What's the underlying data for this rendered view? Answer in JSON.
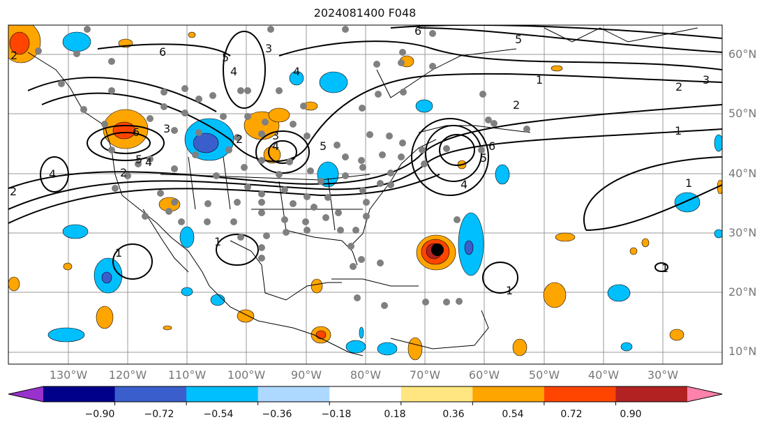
{
  "title": "2024081400 F048",
  "map": {
    "latitude_labels": [
      "60°N",
      "50°N",
      "40°N",
      "30°N",
      "20°N",
      "10°N"
    ],
    "longitude_labels": [
      "130°W",
      "120°W",
      "110°W",
      "100°W",
      "90°W",
      "80°W",
      "70°W",
      "60°W",
      "50°W",
      "40°W",
      "30°W"
    ],
    "contour_labels": [
      "6",
      "5",
      "4",
      "3",
      "2",
      "1"
    ],
    "fill_layer": "anomaly shading",
    "contour_layer": "black line contours",
    "point_layer": "gray station dots",
    "storm_marker_color": "#000000"
  },
  "colorbar": {
    "tick_labels": [
      "−0.90",
      "−0.72",
      "−0.54",
      "−0.36",
      "−0.18",
      "0.18",
      "0.36",
      "0.54",
      "0.72",
      "0.90"
    ],
    "colors": [
      "#9932cc",
      "#00008b",
      "#3a5fcd",
      "#00bfff",
      "#add8ff",
      "#ffffff",
      "#ffe680",
      "#ffa500",
      "#ff4500",
      "#b22222",
      "#ff82ab"
    ]
  }
}
